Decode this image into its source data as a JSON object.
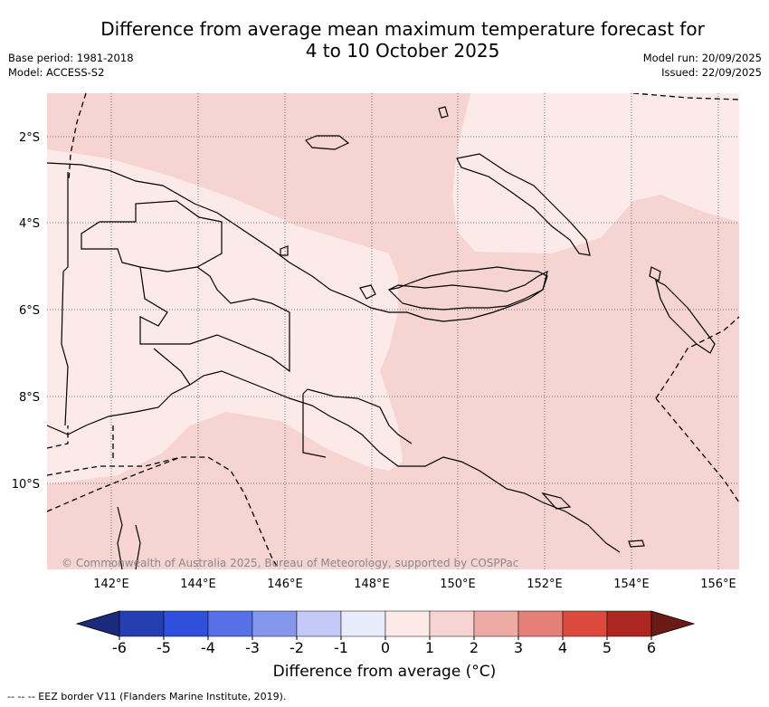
{
  "title_line1": "Difference from average mean maximum temperature forecast for",
  "title_line2": "4 to 10 October 2025",
  "base_period": "Base period: 1981-2018",
  "model": "Model: ACCESS-S2",
  "model_run": "Model run: 20/09/2025",
  "issued": "Issued: 22/09/2025",
  "lat_labels": [
    "2°S",
    "4°S",
    "6°S",
    "8°S",
    "10°S"
  ],
  "lon_labels": [
    "142°E",
    "144°E",
    "146°E",
    "148°E",
    "150°E",
    "152°E",
    "154°E",
    "156°E"
  ],
  "credit": "© Commonwealth of Australia 2025, Bureau of Meteorology, supported by COSPPac",
  "colorbar": {
    "label": "Difference from average (°C)",
    "ticks": [
      "-6",
      "-5",
      "-4",
      "-3",
      "-2",
      "-1",
      "0",
      "1",
      "2",
      "3",
      "4",
      "5",
      "6"
    ],
    "under_color": "#1b2a7a",
    "colors": [
      "#2440b0",
      "#2f4fdd",
      "#5670e6",
      "#8597ec",
      "#c2c9f6",
      "#e8ebfb",
      "#fceae8",
      "#f5d4d1",
      "#eeaaa5",
      "#e58079",
      "#dc4a3e",
      "#ac2820"
    ],
    "over_color": "#6c1a16"
  },
  "map_colors": {
    "light": "#fceae8",
    "medium": "#f5d4d1"
  },
  "footnote": "--  --  -- EEZ border V11 (Flanders Marine Institute, 2019)."
}
